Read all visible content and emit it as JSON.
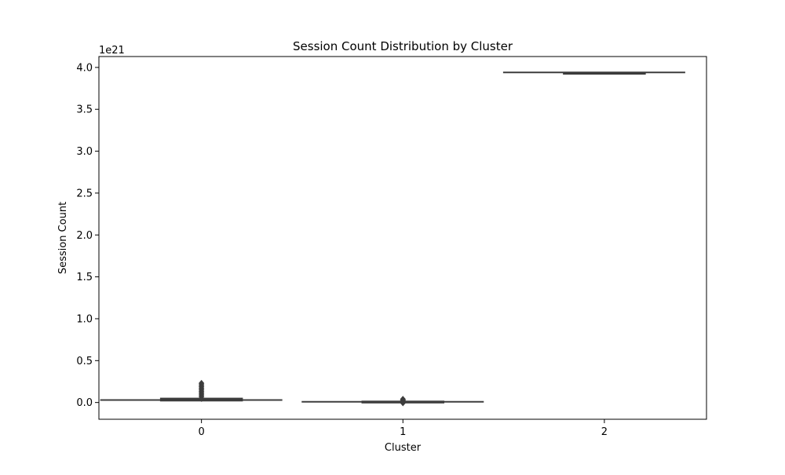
{
  "chart_data": {
    "type": "box",
    "title": "Session Count Distribution by Cluster",
    "xlabel": "Cluster",
    "ylabel": "Session Count",
    "y_offset_label": "1e21",
    "y_scale_factor": 1e+21,
    "categories": [
      "0",
      "1",
      "2"
    ],
    "ylim": [
      -0.2,
      4.13
    ],
    "yticks": [
      0.0,
      0.5,
      1.0,
      1.5,
      2.0,
      2.5,
      3.0,
      3.5,
      4.0
    ],
    "ytick_labels": [
      "0.0",
      "0.5",
      "1.0",
      "1.5",
      "2.0",
      "2.5",
      "3.0",
      "3.5",
      "4.0"
    ],
    "boxes": [
      {
        "category": "0",
        "whisker_low": 0.01,
        "q1": 0.02,
        "median": 0.03,
        "q3": 0.05,
        "whisker_high": 0.05,
        "box_fill": "#3a3a3a",
        "outliers": [
          0.07,
          0.09,
          0.11,
          0.13,
          0.15,
          0.17,
          0.19,
          0.21,
          0.23
        ]
      },
      {
        "category": "1",
        "whisker_low": 0.002,
        "q1": 0.005,
        "median": 0.008,
        "q3": 0.015,
        "whisker_high": 0.015,
        "box_fill": "#3a3a3a",
        "outliers": [
          -0.005,
          0.02,
          0.03,
          0.04
        ]
      },
      {
        "category": "2",
        "whisker_low": 3.94,
        "q1": 3.94,
        "median": 3.94,
        "q3": 3.94,
        "whisker_high": 3.94,
        "box_fill": "#3a3a3a",
        "outliers": []
      }
    ],
    "colors": {
      "line": "#3d3d3d",
      "axis": "#000000"
    },
    "grid": false
  }
}
